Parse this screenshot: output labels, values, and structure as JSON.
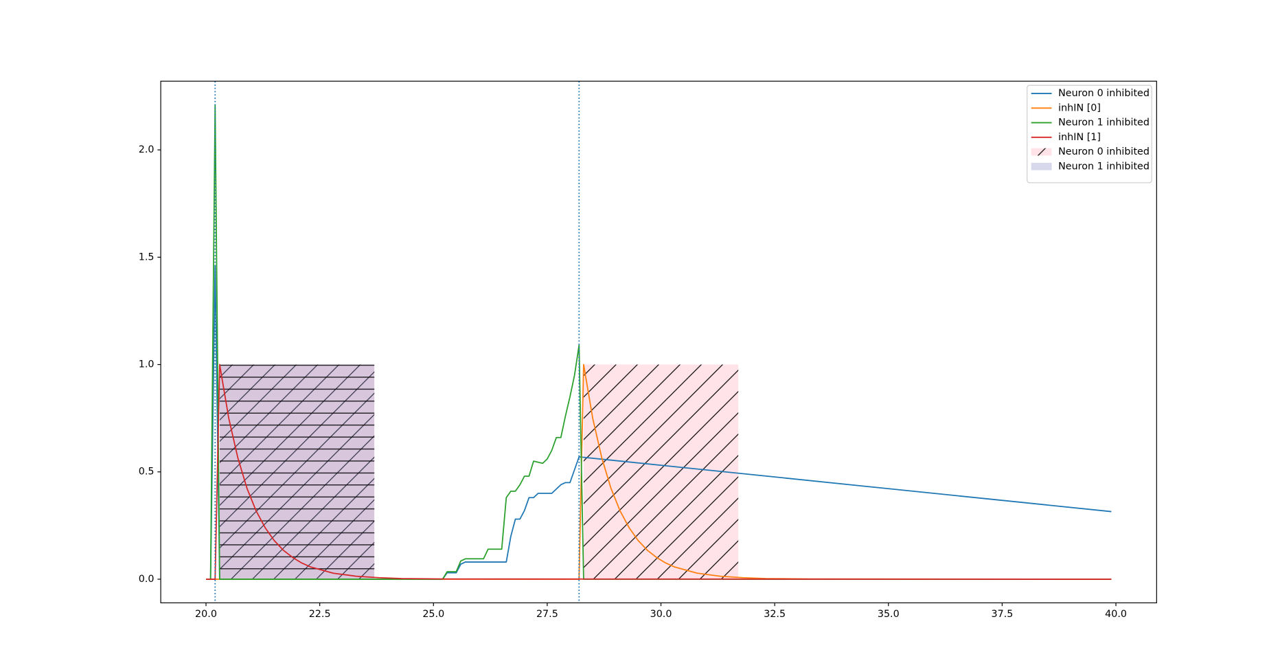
{
  "chart_data": {
    "type": "line",
    "xlim": [
      19.005,
      40.895
    ],
    "ylim": [
      -0.11,
      2.32
    ],
    "xticks": [
      {
        "value": 20,
        "label": "20.0"
      },
      22.5,
      {
        "value": 25,
        "label": "25.0"
      },
      27.5,
      {
        "value": 30,
        "label": "30.0"
      },
      32.5,
      {
        "value": 35,
        "label": "35.0"
      },
      37.5,
      {
        "value": 40,
        "label": "40.0"
      }
    ],
    "yticks": [
      {
        "value": 0,
        "label": "0.0"
      },
      0.5,
      {
        "value": 1,
        "label": "1.0"
      },
      1.5,
      {
        "value": 2,
        "label": "2.0"
      }
    ],
    "grid": false,
    "legend": "upper right",
    "series": [
      {
        "name": "Neuron 0 inhibited",
        "color": "#1f77b4",
        "x": [
          20.0,
          20.1,
          20.2,
          20.3,
          25.2,
          25.3,
          25.5,
          25.6,
          25.7,
          26.0,
          26.3,
          26.6,
          26.7,
          26.8,
          26.9,
          27.0,
          27.1,
          27.2,
          27.3,
          27.6,
          27.8,
          27.9,
          28.0,
          28.2,
          39.9
        ],
        "values": [
          0,
          0,
          1.46,
          0,
          0,
          0.03,
          0.03,
          0.07,
          0.08,
          0.08,
          0.08,
          0.08,
          0.2,
          0.28,
          0.28,
          0.32,
          0.38,
          0.38,
          0.4,
          0.4,
          0.44,
          0.45,
          0.45,
          0.57,
          0.315
        ]
      },
      {
        "name": "inhIN [0]",
        "color": "#ff7f0e",
        "x": [
          20.0,
          28.2,
          28.3,
          28.5,
          28.7,
          28.9,
          29.1,
          29.3,
          29.5,
          29.7,
          29.9,
          30.1,
          30.3,
          30.8,
          31.3,
          31.8,
          32.3,
          33.3,
          39.9
        ],
        "values": [
          0,
          0,
          1.0,
          0.75,
          0.565,
          0.424,
          0.319,
          0.24,
          0.18,
          0.135,
          0.102,
          0.076,
          0.057,
          0.028,
          0.014,
          0.007,
          0.003,
          0.001,
          0
        ]
      },
      {
        "name": "Neuron 1 inhibited",
        "color": "#2ca02c",
        "x": [
          20.0,
          20.1,
          20.2,
          20.3,
          25.2,
          25.3,
          25.5,
          25.6,
          25.7,
          26.1,
          26.2,
          26.5,
          26.6,
          26.7,
          26.8,
          26.9,
          27.0,
          27.1,
          27.2,
          27.4,
          27.5,
          27.6,
          27.7,
          27.8,
          27.9,
          28.0,
          28.1,
          28.2,
          28.3,
          39.9
        ],
        "values": [
          0,
          0,
          2.21,
          0,
          0,
          0.035,
          0.035,
          0.085,
          0.095,
          0.095,
          0.14,
          0.14,
          0.38,
          0.41,
          0.41,
          0.44,
          0.48,
          0.48,
          0.55,
          0.54,
          0.56,
          0.6,
          0.66,
          0.66,
          0.76,
          0.85,
          0.95,
          1.09,
          0,
          0
        ]
      },
      {
        "name": "inhIN [1]",
        "color": "#d62728",
        "x": [
          20.0,
          20.2,
          20.3,
          20.5,
          20.7,
          20.9,
          21.1,
          21.3,
          21.5,
          21.7,
          21.9,
          22.1,
          22.3,
          22.8,
          23.3,
          23.8,
          24.3,
          25.3,
          39.9
        ],
        "values": [
          0,
          0,
          1.0,
          0.75,
          0.565,
          0.424,
          0.319,
          0.24,
          0.18,
          0.135,
          0.102,
          0.076,
          0.057,
          0.028,
          0.014,
          0.007,
          0.003,
          0.001,
          0
        ]
      }
    ],
    "spans": [
      {
        "name": "Neuron 0 inhibited",
        "color": "#ffc0cb",
        "hatch": "/",
        "regions": [
          {
            "x0": 20.3,
            "x1": 23.7,
            "y0": 0,
            "y1": 1
          },
          {
            "x0": 28.3,
            "x1": 31.7,
            "y0": 0,
            "y1": 1
          }
        ]
      },
      {
        "name": "Neuron 1 inhibited",
        "color": "#8f8fc8",
        "hatch": "-",
        "regions": [
          {
            "x0": 20.3,
            "x1": 23.7,
            "y0": 0,
            "y1": 1
          }
        ]
      }
    ],
    "vlines": [
      20.2,
      28.2
    ]
  }
}
